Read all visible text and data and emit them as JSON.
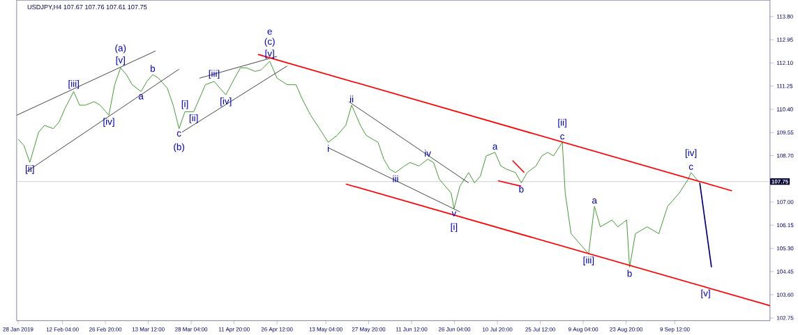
{
  "chart_data": {
    "type": "line",
    "title": "USDJPY,H4  107.67 107.76 107.61 107.75",
    "xlim": [
      "2019-01-27T12:00",
      "2019-10-12"
    ],
    "ylim": [
      102.65,
      114.4
    ],
    "xticks": [
      {
        "value": "2019-01-28T00:00",
        "label": "28 Jan 2019"
      },
      {
        "value": "2019-02-12T04:00",
        "label": "12 Feb 04:00"
      },
      {
        "value": "2019-02-26T20:00",
        "label": "26 Feb 20:00"
      },
      {
        "value": "2019-03-13T12:00",
        "label": "13 Mar 12:00"
      },
      {
        "value": "2019-03-28T04:00",
        "label": "28 Mar 04:00"
      },
      {
        "value": "2019-04-11T20:00",
        "label": "11 Apr 20:00"
      },
      {
        "value": "2019-04-26T12:00",
        "label": "26 Apr 12:00"
      },
      {
        "value": "2019-05-13T04:00",
        "label": "13 May 04:00"
      },
      {
        "value": "2019-05-27T20:00",
        "label": "27 May 20:00"
      },
      {
        "value": "2019-06-11T12:00",
        "label": "11 Jun 12:00"
      },
      {
        "value": "2019-06-26T04:00",
        "label": "26 Jun 04:00"
      },
      {
        "value": "2019-07-10T20:00",
        "label": "10 Jul 20:00"
      },
      {
        "value": "2019-07-25T12:00",
        "label": "25 Jul 12:00"
      },
      {
        "value": "2019-08-09T04:00",
        "label": "9 Aug 04:00"
      },
      {
        "value": "2019-08-23T20:00",
        "label": "23 Aug 20:00"
      },
      {
        "value": "2019-09-09T12:00",
        "label": "9 Sep 12:00"
      }
    ],
    "yticks": [
      {
        "value": 102.75,
        "label": "102.75"
      },
      {
        "value": 103.6,
        "label": "103.60"
      },
      {
        "value": 104.45,
        "label": "104.45"
      },
      {
        "value": 105.3,
        "label": "105.30"
      },
      {
        "value": 106.15,
        "label": "106.15"
      },
      {
        "value": 107.0,
        "label": "107.00"
      },
      {
        "value": 108.7,
        "label": "108.70"
      },
      {
        "value": 109.55,
        "label": "109.55"
      },
      {
        "value": 110.4,
        "label": "110.40"
      },
      {
        "value": 111.25,
        "label": "111.25"
      },
      {
        "value": 112.1,
        "label": "112.10"
      },
      {
        "value": 112.95,
        "label": "112.95"
      },
      {
        "value": 113.8,
        "label": "113.80"
      }
    ],
    "series": [
      {
        "color": "#3c9a2a",
        "x": [
          "2019-01-28",
          "2019-01-30",
          "2019-02-01",
          "2019-02-04",
          "2019-02-06",
          "2019-02-09",
          "2019-02-11",
          "2019-02-13",
          "2019-02-16",
          "2019-02-18",
          "2019-02-20",
          "2019-02-23",
          "2019-02-25",
          "2019-02-27",
          "2019-02-28",
          "2019-03-02",
          "2019-03-04",
          "2019-03-06",
          "2019-03-08",
          "2019-03-11",
          "2019-03-13",
          "2019-03-15",
          "2019-03-17",
          "2019-03-20",
          "2019-03-22",
          "2019-03-24",
          "2019-03-26",
          "2019-03-29",
          "2019-03-31",
          "2019-04-02",
          "2019-04-05",
          "2019-04-07",
          "2019-04-09",
          "2019-04-12",
          "2019-04-14",
          "2019-04-16",
          "2019-04-19",
          "2019-04-21",
          "2019-04-24",
          "2019-04-26T12:00",
          "2019-04-30",
          "2019-05-03",
          "2019-05-05",
          "2019-05-08",
          "2019-05-11",
          "2019-05-14",
          "2019-05-17",
          "2019-05-20",
          "2019-05-22",
          "2019-05-25",
          "2019-05-27",
          "2019-05-31",
          "2019-06-02",
          "2019-06-04",
          "2019-06-06",
          "2019-06-09",
          "2019-06-11",
          "2019-06-14",
          "2019-06-17",
          "2019-06-19",
          "2019-06-21",
          "2019-06-25",
          "2019-06-26",
          "2019-06-28",
          "2019-07-01",
          "2019-07-03",
          "2019-07-05",
          "2019-07-07",
          "2019-07-10",
          "2019-07-12",
          "2019-07-14",
          "2019-07-17",
          "2019-07-19",
          "2019-07-21",
          "2019-07-24",
          "2019-07-26",
          "2019-07-28",
          "2019-07-30",
          "2019-08-02",
          "2019-08-03",
          "2019-08-05",
          "2019-08-08",
          "2019-08-11",
          "2019-08-13",
          "2019-08-15",
          "2019-08-19",
          "2019-08-21",
          "2019-08-24",
          "2019-08-25",
          "2019-08-27",
          "2019-08-31",
          "2019-09-04",
          "2019-09-07",
          "2019-09-11",
          "2019-09-14",
          "2019-09-15",
          "2019-09-18"
        ],
        "values": [
          109.31,
          109.07,
          108.45,
          109.56,
          109.81,
          109.69,
          109.93,
          110.43,
          111.05,
          110.55,
          110.55,
          110.68,
          110.55,
          110.31,
          110.18,
          111.3,
          111.92,
          111.67,
          111.3,
          111.05,
          111.42,
          111.67,
          111.54,
          111.17,
          110.55,
          109.69,
          110.31,
          110.31,
          110.8,
          111.3,
          111.42,
          111.17,
          110.93,
          111.54,
          111.92,
          111.92,
          111.79,
          111.84,
          112.16,
          111.54,
          111.3,
          111.3,
          110.8,
          110.18,
          109.69,
          109.19,
          109.44,
          109.81,
          110.55,
          109.81,
          109.44,
          109.19,
          108.57,
          108.2,
          108.08,
          108.32,
          108.45,
          108.32,
          108.57,
          108.45,
          107.83,
          107.33,
          106.76,
          107.58,
          108.08,
          107.7,
          107.95,
          108.69,
          108.82,
          108.32,
          108.2,
          108.08,
          107.7,
          108.08,
          108.32,
          108.69,
          108.82,
          108.69,
          109.19,
          107.33,
          105.84,
          105.47,
          105.1,
          106.84,
          106.09,
          106.34,
          106.09,
          106.34,
          104.61,
          105.84,
          106.09,
          105.84,
          106.84,
          107.33,
          107.83,
          108.08,
          107.7
        ]
      },
      {
        "color": "#000000",
        "x": [
          "2019-01-27T12:00",
          "2019-03-16"
        ],
        "values": [
          110.18,
          112.54
        ]
      },
      {
        "color": "#000000",
        "x": [
          "2019-01-31",
          "2019-03-24"
        ],
        "values": [
          108.12,
          111.87
        ]
      },
      {
        "color": "#000000",
        "x": [
          "2019-03-31",
          "2019-04-26T12:00"
        ],
        "values": [
          111.54,
          112.34
        ]
      },
      {
        "color": "#000000",
        "x": [
          "2019-03-25",
          "2019-04-30"
        ],
        "values": [
          109.56,
          111.99
        ]
      },
      {
        "color": "#000000",
        "x": [
          "2019-05-21",
          "2019-07-01"
        ],
        "values": [
          110.68,
          107.7
        ]
      },
      {
        "color": "#000000",
        "x": [
          "2019-05-14",
          "2019-06-28"
        ],
        "values": [
          108.99,
          106.64
        ]
      },
      {
        "color": "#ff0000",
        "x": [
          "2019-04-20",
          "2019-09-29"
        ],
        "values": [
          112.41,
          107.41
        ]
      },
      {
        "color": "#ff0000",
        "x": [
          "2019-05-20",
          "2019-10-12"
        ],
        "values": [
          107.66,
          103.2
        ]
      },
      {
        "color": "#ff0000",
        "x": [
          "2019-07-11",
          "2019-07-19"
        ],
        "values": [
          107.78,
          107.58
        ]
      },
      {
        "color": "#ff0000",
        "x": [
          "2019-07-16",
          "2019-07-20"
        ],
        "values": [
          108.52,
          108.08
        ]
      },
      {
        "color": "#000080",
        "x": [
          "2019-09-18",
          "2019-09-22"
        ],
        "values": [
          107.7,
          104.61
        ]
      }
    ],
    "ref_lines": [
      {
        "axis": "y",
        "value": 107.75,
        "label": "107.75",
        "color": "#c0c0c0"
      }
    ],
    "annotations": [
      {
        "text": "[v]",
        "x": "2019-04-24",
        "y": 112.16
      },
      {
        "text": "(c)",
        "x": "2019-04-24",
        "y": 112.16
      },
      {
        "text": "e",
        "x": "2019-04-24",
        "y": 112.16
      },
      {
        "text": "[v]",
        "x": "2019-03-04",
        "y": 111.92
      },
      {
        "text": "(a)",
        "x": "2019-03-04",
        "y": 111.92
      },
      {
        "text": "[iii]",
        "x": "2019-02-16",
        "y": 111.05
      },
      {
        "text": "[iv]",
        "x": "2019-02-28",
        "y": 110.18
      },
      {
        "text": "[ii]",
        "x": "2019-02-01",
        "y": 108.45
      },
      {
        "text": "b",
        "x": "2019-03-15",
        "y": 111.67
      },
      {
        "text": "a",
        "x": "2019-03-11",
        "y": 111.05
      },
      {
        "text": "c",
        "x": "2019-03-24",
        "y": 109.69
      },
      {
        "text": "(b)",
        "x": "2019-03-24",
        "y": 109.69
      },
      {
        "text": "[i]",
        "x": "2019-03-26",
        "y": 110.31
      },
      {
        "text": "[ii]",
        "x": "2019-03-29",
        "y": 110.31
      },
      {
        "text": "[iii]",
        "x": "2019-04-05",
        "y": 111.42
      },
      {
        "text": "[iv]",
        "x": "2019-04-09",
        "y": 110.93
      },
      {
        "text": "i",
        "x": "2019-05-14",
        "y": 109.19
      },
      {
        "text": "ii",
        "x": "2019-05-22",
        "y": 110.55
      },
      {
        "text": "iii",
        "x": "2019-06-06",
        "y": 108.08
      },
      {
        "text": "iv",
        "x": "2019-06-17",
        "y": 108.57
      },
      {
        "text": "v",
        "x": "2019-06-26",
        "y": 106.76
      },
      {
        "text": "[i]",
        "x": "2019-06-26",
        "y": 106.76
      },
      {
        "text": "a",
        "x": "2019-07-10",
        "y": 108.82
      },
      {
        "text": "b",
        "x": "2019-07-19",
        "y": 107.7
      },
      {
        "text": "c",
        "x": "2019-08-02",
        "y": 109.19
      },
      {
        "text": "[ii]",
        "x": "2019-08-02",
        "y": 109.19
      },
      {
        "text": "a",
        "x": "2019-08-13",
        "y": 106.84
      },
      {
        "text": "[iii]",
        "x": "2019-08-11",
        "y": 105.1
      },
      {
        "text": "b",
        "x": "2019-08-25",
        "y": 104.61
      },
      {
        "text": "c",
        "x": "2019-09-15",
        "y": 108.08
      },
      {
        "text": "[iv]",
        "x": "2019-09-15",
        "y": 108.08
      },
      {
        "text": "[v]",
        "x": "2019-09-20",
        "y": 103.89
      }
    ]
  }
}
